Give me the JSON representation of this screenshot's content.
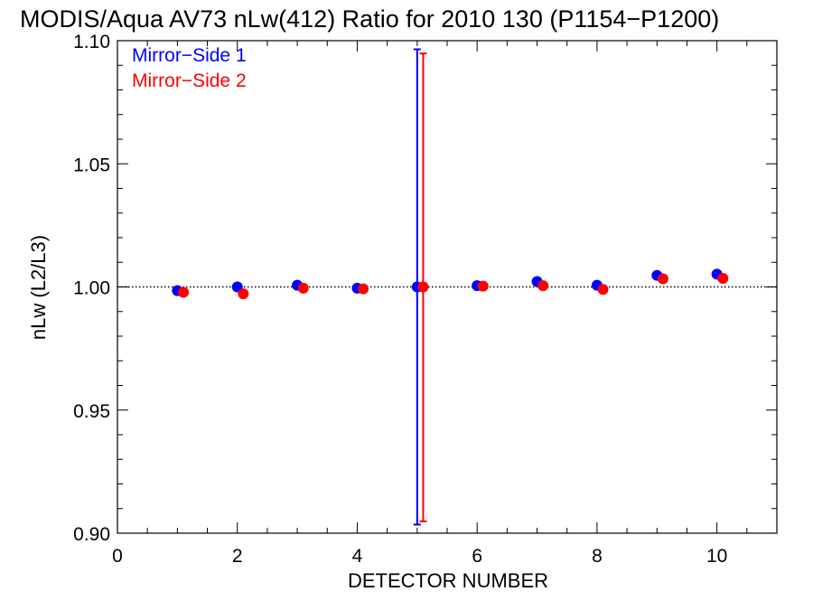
{
  "chart_data": {
    "type": "scatter",
    "title": "MODIS/Aqua AV73 nLw(412) Ratio for 2010 130 (P1154−P1200)",
    "xlabel": "DETECTOR NUMBER",
    "ylabel": "nLw (L2/L3)",
    "xlim": [
      0,
      11
    ],
    "ylim": [
      0.9,
      1.1
    ],
    "x_ticks": [
      0,
      2,
      4,
      6,
      8,
      10
    ],
    "x_tick_labels": [
      "0",
      "2",
      "4",
      "6",
      "8",
      "10"
    ],
    "y_ticks": [
      0.9,
      0.95,
      1.0,
      1.05,
      1.1
    ],
    "y_tick_labels": [
      "0.90",
      "0.95",
      "1.00",
      "1.05",
      "1.10"
    ],
    "reference_line": 1.0,
    "legend_position": "top-left",
    "series": [
      {
        "name": "Mirror−Side 1",
        "color": "#0000ff",
        "x": [
          1,
          2,
          3,
          4,
          5,
          6,
          7,
          8,
          9,
          10
        ],
        "y": [
          0.9985,
          1.0,
          1.0007,
          0.9995,
          1.0,
          1.0005,
          1.0022,
          1.0007,
          1.0047,
          1.0052
        ],
        "error_bars": [
          {
            "x": 5,
            "low": 0.9035,
            "high": 1.0965
          }
        ]
      },
      {
        "name": "Mirror−Side 2",
        "color": "#ff0000",
        "x": [
          1.1,
          2.1,
          3.1,
          4.1,
          5.1,
          6.1,
          7.1,
          8.1,
          9.1,
          10.1
        ],
        "y": [
          0.9978,
          0.9972,
          0.9995,
          0.9992,
          1.0,
          1.0003,
          1.0005,
          0.999,
          1.0033,
          1.0035
        ],
        "error_bars": [
          {
            "x": 5.1,
            "low": 0.9048,
            "high": 1.0948
          }
        ]
      }
    ]
  }
}
